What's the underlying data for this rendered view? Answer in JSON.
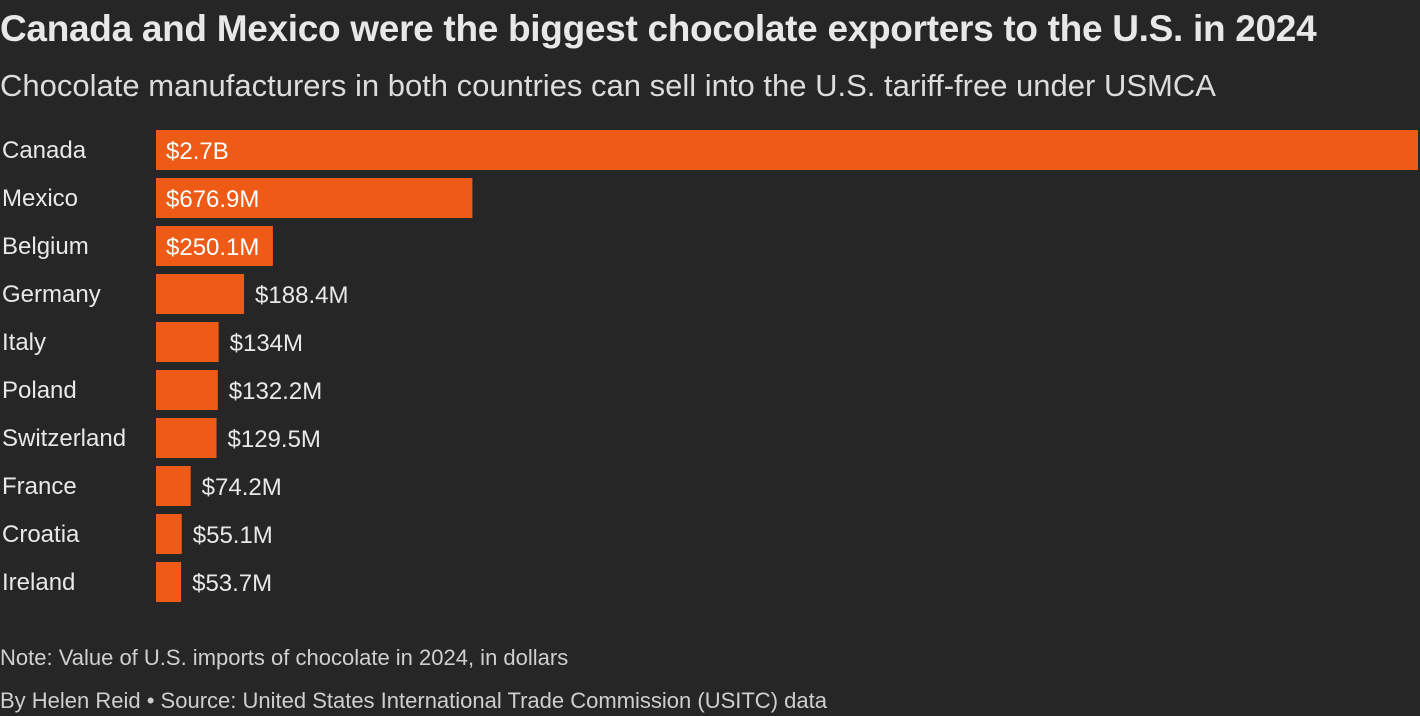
{
  "title": "Canada and Mexico were the biggest chocolate exporters to the U.S. in 2024",
  "subtitle": "Chocolate manufacturers in both countries can sell into the U.S. tariff-free under USMCA",
  "note": "Note: Value of U.S. imports of chocolate in 2024, in dollars",
  "credit": "By Helen Reid • Source: United States International Trade Commission (USITC) data",
  "colors": {
    "background": "#262626",
    "bar": "#ee5b16",
    "text": "#e8e8e8"
  },
  "chart_data": {
    "type": "bar",
    "orientation": "horizontal",
    "categories": [
      "Canada",
      "Mexico",
      "Belgium",
      "Germany",
      "Italy",
      "Poland",
      "Switzerland",
      "France",
      "Croatia",
      "Ireland"
    ],
    "values": [
      2700,
      676.9,
      250.1,
      188.4,
      134,
      132.2,
      129.5,
      74.2,
      55.1,
      53.7
    ],
    "value_unit": "millions of dollars",
    "labels": [
      "$2.7B",
      "$676.9M",
      "$250.1M",
      "$188.4M",
      "$134M",
      "$132.2M",
      "$129.5M",
      "$74.2M",
      "$55.1M",
      "$53.7M"
    ],
    "xlim": [
      0,
      2650
    ],
    "grid": false,
    "legend": "none"
  }
}
